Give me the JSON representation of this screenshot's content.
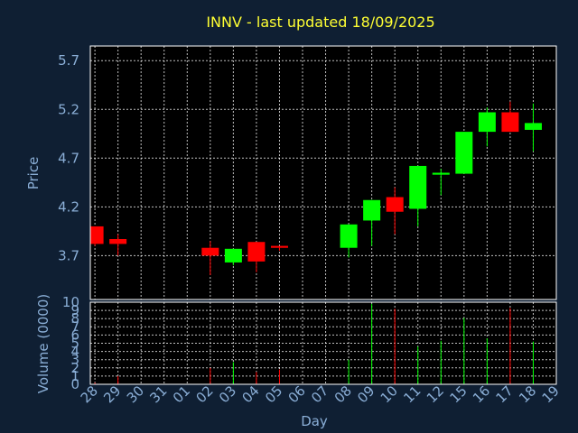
{
  "chart_data": {
    "type": "candlestick",
    "title": "INNV - last updated 18/09/2025",
    "xlabel": "Day",
    "price_panel": {
      "ylabel": "Price",
      "ylim": [
        3.25,
        5.85
      ],
      "yticks": [
        "3.7",
        "4.2",
        "4.7",
        "5.2",
        "5.7"
      ],
      "grid": true
    },
    "volume_panel": {
      "ylabel": "Volume (0000)",
      "ylim": [
        0,
        10
      ],
      "yticks": [
        "0",
        "1",
        "2",
        "3",
        "4",
        "5",
        "6",
        "7",
        "8",
        "9",
        "10"
      ],
      "grid": true
    },
    "x_ticks": [
      "28",
      "29",
      "30",
      "31",
      "01",
      "02",
      "03",
      "04",
      "05",
      "06",
      "07",
      "08",
      "09",
      "10",
      "11",
      "12",
      "15",
      "16",
      "17",
      "18",
      "19"
    ],
    "x_ticks_note_index": [
      -1,
      0,
      1,
      2,
      3,
      4,
      5,
      6,
      7,
      8,
      9,
      10,
      11,
      12,
      13,
      14,
      15,
      16,
      17,
      18,
      19
    ],
    "candles": [
      {
        "x": 28,
        "open": 4.0,
        "high": 4.0,
        "low": 3.8,
        "close": 3.82,
        "volume": 0.2
      },
      {
        "x": 29,
        "open": 3.87,
        "high": 3.92,
        "low": 3.7,
        "close": 3.82,
        "volume": 1.0
      },
      {
        "x": "02",
        "open": 3.78,
        "high": 3.85,
        "low": 3.5,
        "close": 3.7,
        "volume": 2.0
      },
      {
        "x": "03",
        "open": 3.63,
        "high": 3.77,
        "low": 3.6,
        "close": 3.77,
        "volume": 2.7
      },
      {
        "x": "04",
        "open": 3.84,
        "high": 3.84,
        "low": 3.53,
        "close": 3.64,
        "volume": 1.5
      },
      {
        "x": "05",
        "open": 3.8,
        "high": 3.8,
        "low": 3.75,
        "close": 3.78,
        "volume": 1.8
      },
      {
        "x": "08",
        "open": 3.78,
        "high": 4.02,
        "low": 3.68,
        "close": 4.02,
        "volume": 3.0
      },
      {
        "x": "09",
        "open": 4.06,
        "high": 4.27,
        "low": 3.8,
        "close": 4.27,
        "volume": 9.8
      },
      {
        "x": "10",
        "open": 4.3,
        "high": 4.4,
        "low": 3.92,
        "close": 4.15,
        "volume": 9.2
      },
      {
        "x": "11",
        "open": 4.18,
        "high": 4.62,
        "low": 4.0,
        "close": 4.62,
        "volume": 4.6
      },
      {
        "x": "12",
        "open": 4.53,
        "high": 4.59,
        "low": 4.32,
        "close": 4.55,
        "volume": 5.3
      },
      {
        "x": "15",
        "open": 4.54,
        "high": 4.97,
        "low": 4.54,
        "close": 4.97,
        "volume": 8.1
      },
      {
        "x": "16",
        "open": 4.97,
        "high": 5.22,
        "low": 4.82,
        "close": 5.17,
        "volume": 5.6
      },
      {
        "x": "17",
        "open": 5.17,
        "high": 5.28,
        "low": 4.97,
        "close": 4.97,
        "volume": 9.3
      },
      {
        "x": "18",
        "open": 4.99,
        "high": 5.26,
        "low": 4.77,
        "close": 5.06,
        "volume": 5.2
      }
    ],
    "colors": {
      "up": "#00ff00",
      "down": "#ff0000",
      "background": "#000000",
      "page": "#0f1f33",
      "grid": "#ffffff",
      "text": "#8aaed6",
      "title": "#ffff33"
    }
  }
}
